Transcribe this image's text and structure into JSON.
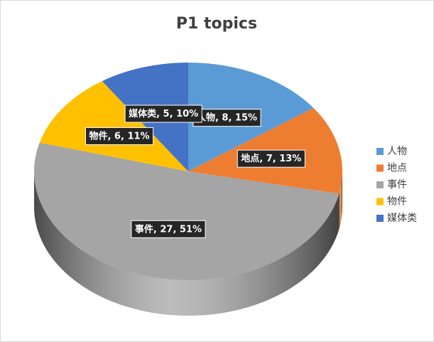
{
  "chart_data": {
    "type": "pie",
    "title": "P1 topics",
    "categories": [
      "人物",
      "地点",
      "事件",
      "物件",
      "媒体类"
    ],
    "values": [
      8,
      7,
      27,
      6,
      5
    ],
    "value_labels": [
      "人物, 8, 15%",
      "地点, 7, 13%",
      "事件, 27, 51%",
      "物件, 6, 11%",
      "媒体类, 5, 10%"
    ],
    "colors": [
      "#5b9bd5",
      "#ed7d31",
      "#a5a5a5",
      "#ffc000",
      "#4472c4"
    ],
    "legend": "right"
  }
}
